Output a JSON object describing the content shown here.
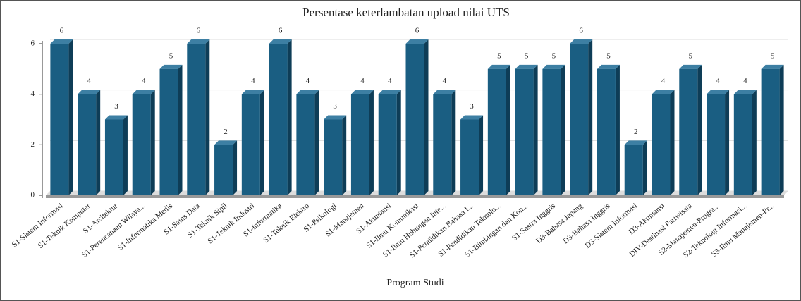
{
  "chart_data": {
    "type": "bar",
    "title": "Persentase keterlambatan upload nilai UTS",
    "x_label": "Program Studi",
    "categories": [
      "S1-Sistem Informasi",
      "S1-Teknik Komputer",
      "S1-Arsitektur",
      "S1-Perencanaan Wilaya...",
      "S1-Informatika Medis",
      "S1-Sains Data",
      "S1-Teknik Sipil",
      "S1-Teknik Industri",
      "S1-Informatika",
      "S1-Teknik Elektro",
      "S1-Psikologi",
      "S1-Manajemen",
      "S1-Akuntansi",
      "S1-Ilmu Komunikasi",
      "S1-Ilmu Hubungan Inte...",
      "S1-Pendidikan Bahasa I...",
      "S1-Pendidikan Teknolo...",
      "S1-Bimbingan dan Kon...",
      "S1-Sastra Inggris",
      "D3-Bahasa Jepang",
      "D3-Bahasa Inggris",
      "D3-Sistem Informasi",
      "D3-Akuntansi",
      "DIV-Destinasi Pariwisata",
      "S2-Manajemen-Progra...",
      "S2-Teknologi Informasi...",
      "S3-Ilmu Manajemen-Pr..."
    ],
    "values": [
      6,
      4,
      3,
      4,
      5,
      6,
      2,
      4,
      6,
      4,
      3,
      4,
      4,
      6,
      4,
      3,
      5,
      5,
      5,
      6,
      5,
      2,
      4,
      5,
      4,
      4,
      5
    ],
    "color": "#1a5e82",
    "ylim": [
      0,
      6
    ],
    "yticks": [
      0,
      2,
      4,
      6
    ],
    "grid": true
  }
}
